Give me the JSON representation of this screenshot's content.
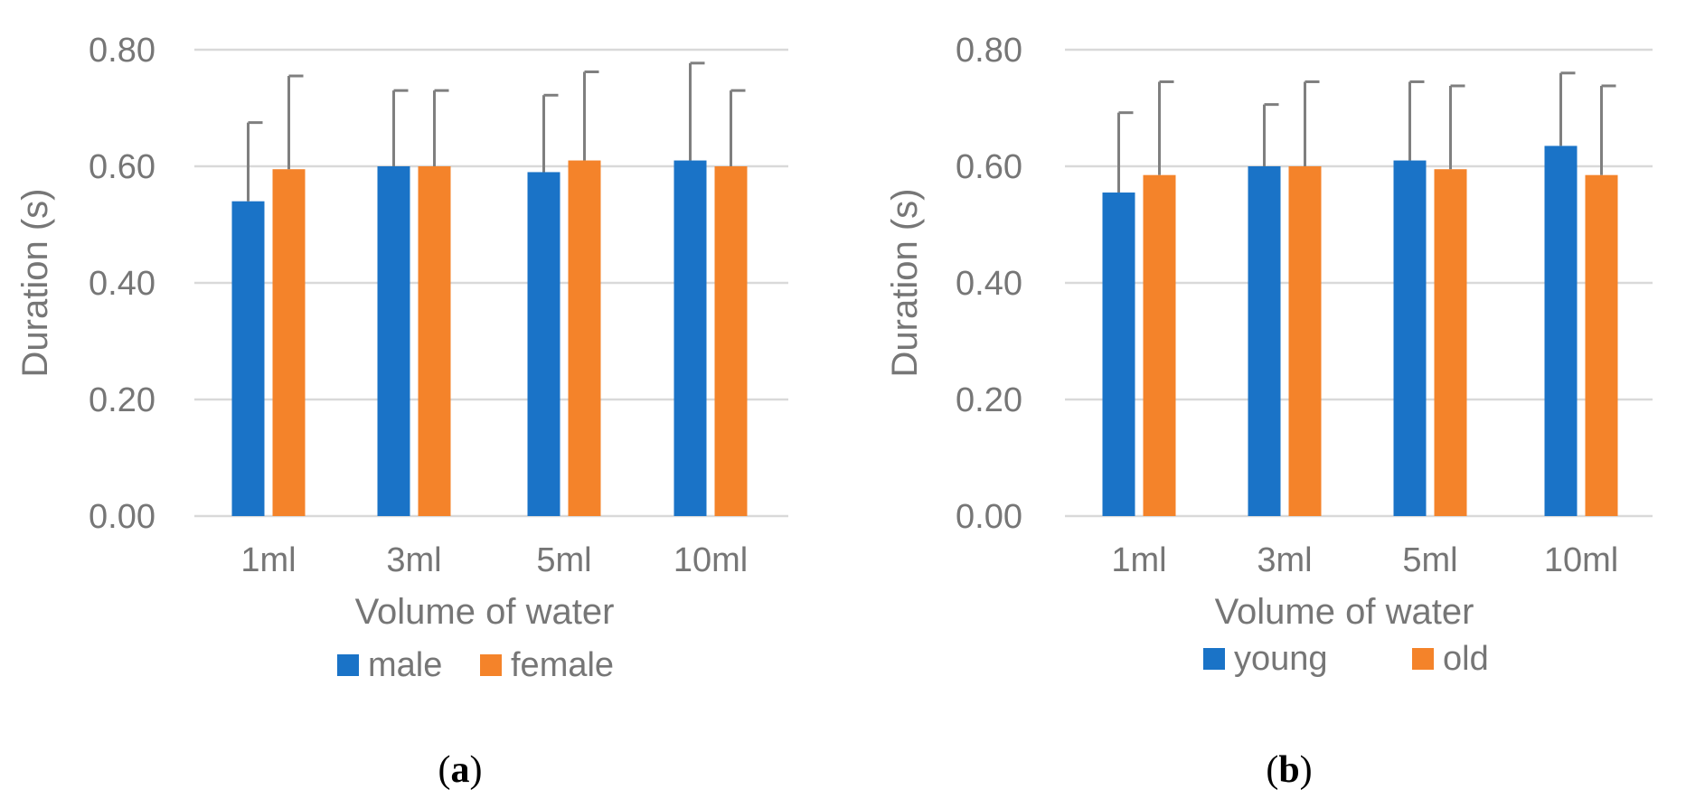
{
  "chart_data": [
    {
      "type": "bar",
      "panel": "(a)",
      "categories": [
        "1ml",
        "3ml",
        "5ml",
        "10ml"
      ],
      "xlabel": "Volume of water",
      "ylabel": "Duration (s)",
      "ylim": [
        0,
        0.8
      ],
      "yticks": [
        "0.00",
        "0.20",
        "0.40",
        "0.60",
        "0.80"
      ],
      "grid": true,
      "legend_position": "bottom",
      "series": [
        {
          "name": "male",
          "color": "#1a73c7",
          "values": [
            0.54,
            0.6,
            0.59,
            0.61
          ],
          "error_upper": [
            0.675,
            0.73,
            0.722,
            0.777
          ]
        },
        {
          "name": "female",
          "color": "#f4832a",
          "values": [
            0.595,
            0.6,
            0.61,
            0.6
          ],
          "error_upper": [
            0.755,
            0.73,
            0.762,
            0.73
          ]
        }
      ]
    },
    {
      "type": "bar",
      "panel": "(b)",
      "categories": [
        "1ml",
        "3ml",
        "5ml",
        "10ml"
      ],
      "xlabel": "Volume of water",
      "ylabel": "Duration (s)",
      "ylim": [
        0,
        0.8
      ],
      "yticks": [
        "0.00",
        "0.20",
        "0.40",
        "0.60",
        "0.80"
      ],
      "grid": true,
      "legend_position": "bottom",
      "series": [
        {
          "name": "young",
          "color": "#1a73c7",
          "values": [
            0.555,
            0.6,
            0.61,
            0.635
          ],
          "error_upper": [
            0.692,
            0.706,
            0.745,
            0.76
          ]
        },
        {
          "name": "old",
          "color": "#f4832a",
          "values": [
            0.585,
            0.6,
            0.595,
            0.585
          ],
          "error_upper": [
            0.745,
            0.745,
            0.738,
            0.738
          ]
        }
      ]
    }
  ],
  "colors": {
    "axis_text": "#767676",
    "grid": "#d9d9d9",
    "error_bar": "#7f7f7f"
  }
}
